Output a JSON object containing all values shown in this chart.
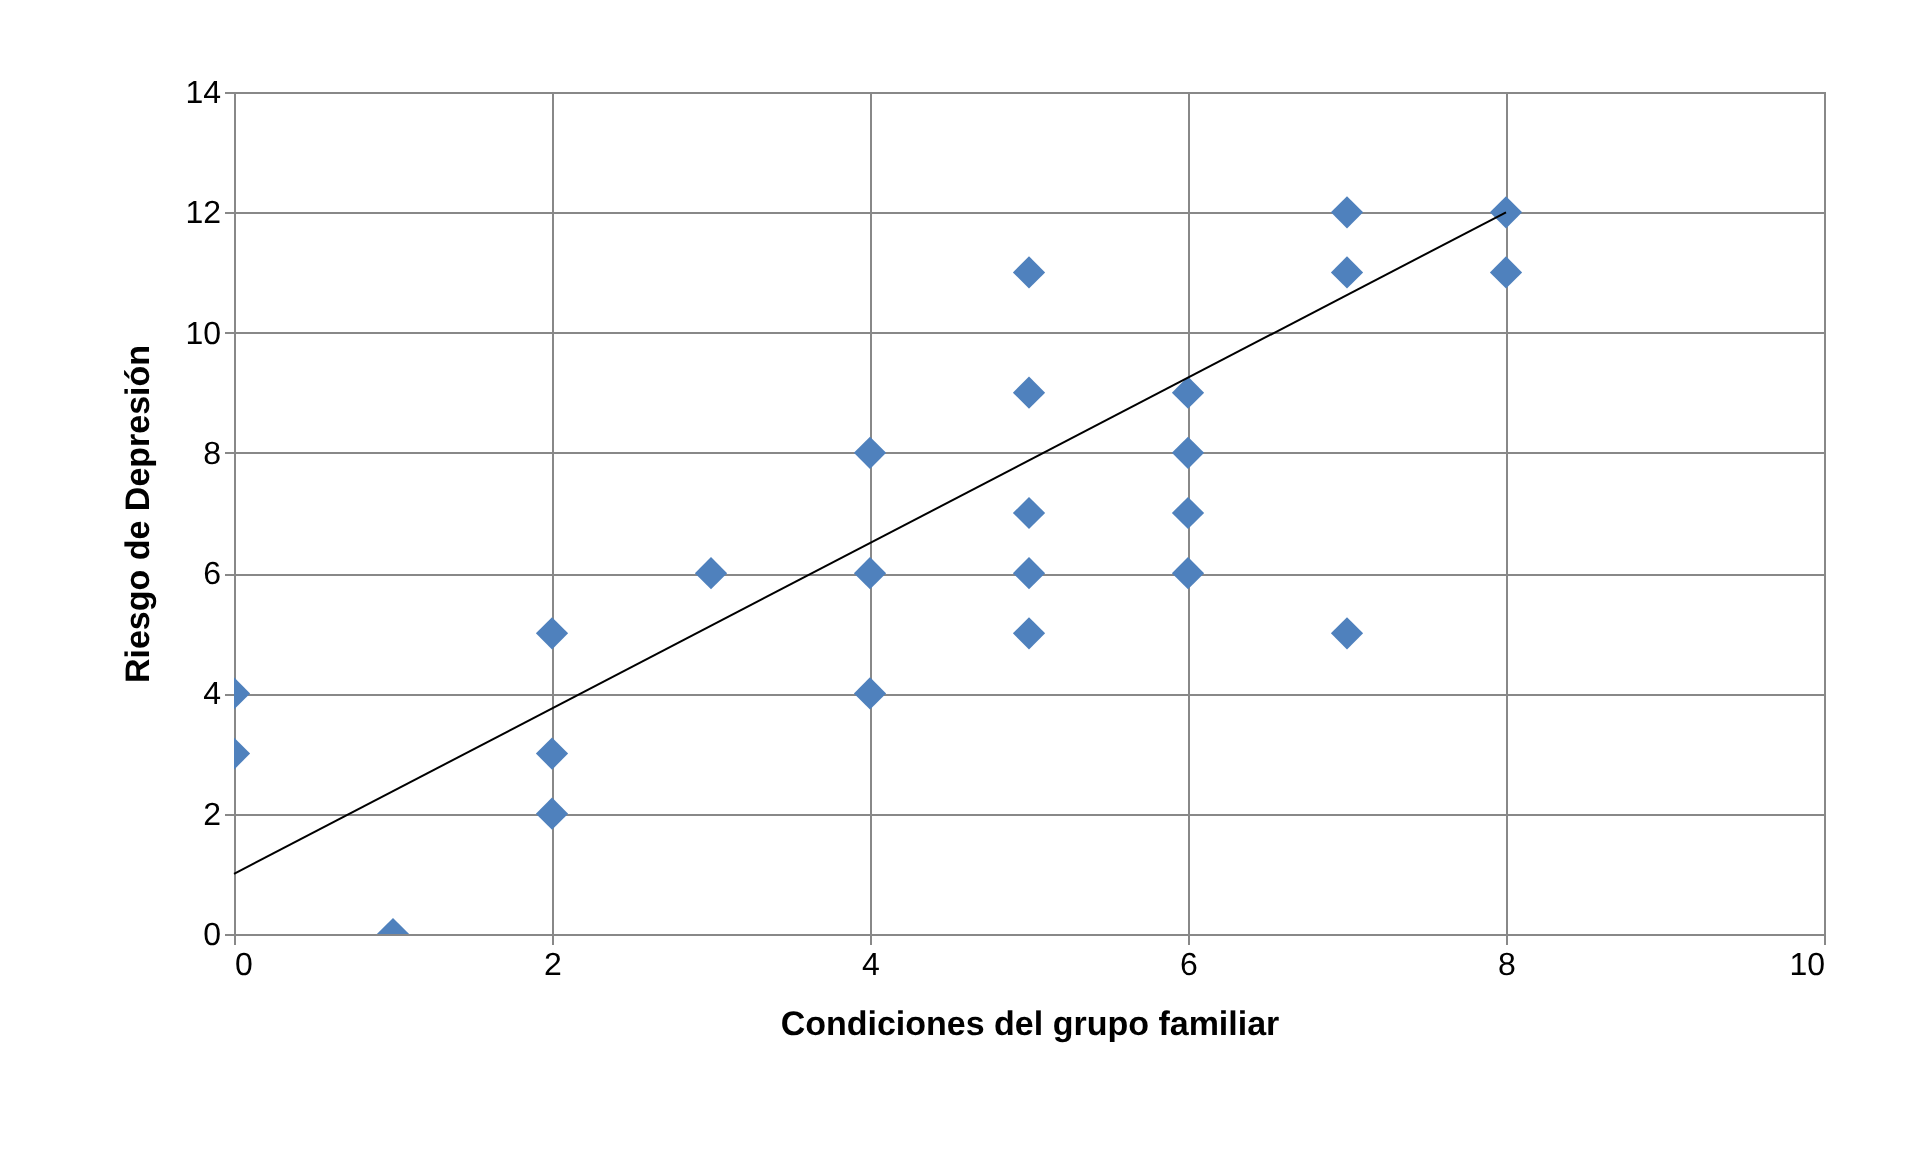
{
  "chart_data": {
    "type": "scatter",
    "xlabel": "Condiciones del grupo familiar",
    "ylabel": "Riesgo de Depresión",
    "xlim": [
      0,
      10
    ],
    "xticks": [
      0,
      2,
      4,
      6,
      8,
      10
    ],
    "ylim": [
      0,
      14
    ],
    "yticks": [
      0,
      2,
      4,
      6,
      8,
      10,
      12,
      14
    ],
    "grid": true,
    "series": [
      {
        "color": "#4f81bd",
        "marker": "diamond",
        "x": [
          0,
          0,
          1,
          2,
          2,
          2,
          3,
          4,
          4,
          4,
          5,
          5,
          5,
          5,
          5,
          6,
          6,
          6,
          6,
          7,
          7,
          7,
          8,
          8
        ],
        "values": [
          4,
          3,
          0,
          5,
          3,
          2,
          6,
          8,
          6,
          4,
          11,
          9,
          7,
          6,
          5,
          9,
          8,
          7,
          6,
          12,
          11,
          5,
          12,
          11
        ]
      },
      {
        "type": "line",
        "marker": "none",
        "color": "#000000",
        "x": [
          0,
          8
        ],
        "values": [
          1,
          12
        ]
      }
    ]
  }
}
